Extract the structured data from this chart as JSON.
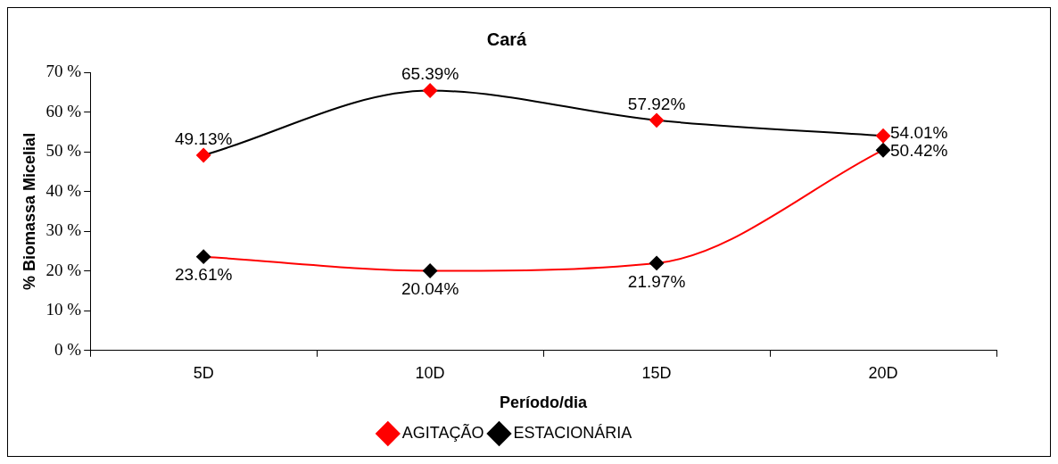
{
  "chart_data": {
    "type": "line",
    "title": "Cará",
    "xlabel": "Período/dia",
    "ylabel": "% Biomassa Micelial",
    "categories": [
      "5D",
      "10D",
      "15D",
      "20D"
    ],
    "series": [
      {
        "name": "AGITAÇÃO",
        "color": "#000000",
        "colors": [
          "#ff0000",
          "#ff0000",
          "#ff0000",
          "#ff0000"
        ],
        "values": [
          49.13,
          65.39,
          57.92,
          54.01
        ],
        "value_labels": [
          "49.13%",
          "65.39%",
          "57.92%",
          "54.01%"
        ]
      },
      {
        "name": "ESTACIONÁRIA",
        "color": "#ff0000",
        "colors": [
          "#000000",
          "#000000",
          "#000000",
          "#000000"
        ],
        "values": [
          23.61,
          20.04,
          21.97,
          50.42
        ],
        "value_labels": [
          "23.61%",
          "20.04%",
          "21.97%",
          "50.42%"
        ]
      }
    ],
    "ylim": [
      0,
      70
    ],
    "yticks": [
      {
        "value": 0,
        "label": "0 %"
      },
      {
        "value": 10,
        "label": "10 %"
      },
      {
        "value": 20,
        "label": "20 %"
      },
      {
        "value": 30,
        "label": "30 %"
      },
      {
        "value": 40,
        "label": "40 %"
      },
      {
        "value": 50,
        "label": "50 %"
      },
      {
        "value": 60,
        "label": "60 %"
      },
      {
        "value": 70,
        "label": "70 %"
      }
    ],
    "grid": false,
    "legend": "bottom",
    "marker": "diamond",
    "line_style": "solid"
  }
}
